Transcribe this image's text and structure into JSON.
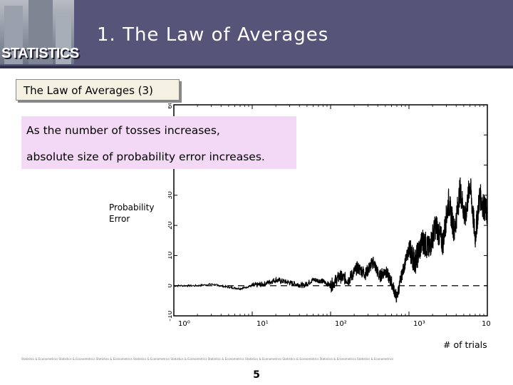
{
  "header": {
    "logo_text": "STATISTICS",
    "title": "1.  The Law of Averages"
  },
  "subtitle": "The Law of Averages (3)",
  "note": {
    "line1": "As the number of tosses increases,",
    "line2": "absolute size of probability error  increases."
  },
  "chart_data": {
    "type": "line",
    "title": "",
    "xlabel": "# of trials",
    "ylabel": "Probability Error",
    "xscale": "log",
    "xlim": [
      1,
      10000
    ],
    "ylim": [
      -10,
      60
    ],
    "x_tick_labels": [
      "10⁰",
      "10¹",
      "10²",
      "10³",
      "10⁴"
    ],
    "y_tick_labels": [
      "-10",
      "0",
      "10",
      "20",
      "30",
      "40",
      "50",
      "60"
    ],
    "reference_line": {
      "y": 0,
      "style": "dashed"
    },
    "series": [
      {
        "x": [
          1,
          2,
          3,
          5,
          7,
          10,
          14,
          20,
          30,
          45,
          60,
          80,
          100,
          130,
          170,
          220,
          280,
          350,
          420,
          500,
          600,
          700,
          800,
          900,
          1000,
          1200,
          1500,
          1800,
          2200,
          2700,
          3200,
          3800,
          4500,
          5200,
          6000,
          7000,
          8000,
          9000,
          10000
        ],
        "y": [
          0,
          0,
          0.5,
          -0.5,
          -1,
          0,
          0.5,
          2,
          1,
          0,
          2,
          1.5,
          0,
          3,
          2,
          6,
          4,
          8,
          3,
          5,
          1,
          -4,
          3,
          8,
          12,
          8,
          15,
          12,
          20,
          14,
          28,
          18,
          32,
          22,
          34,
          16,
          30,
          26,
          24
        ]
      }
    ]
  },
  "footer": {
    "strip_text": "Statistics & Econometrics Statistics & Econometrics Statistics & Econometrics Statistics & Econometrics Statistics & Econometrics Statistics & Econometrics Statistics & Econometrics Statistics & Econometrics Statistics & Econometrics Statistics & Econometrics",
    "page_number": "5"
  },
  "colors": {
    "header_bg": "#565478",
    "note_bg": "#f3d9f5",
    "subtitle_bg": "#f4f1e3"
  }
}
